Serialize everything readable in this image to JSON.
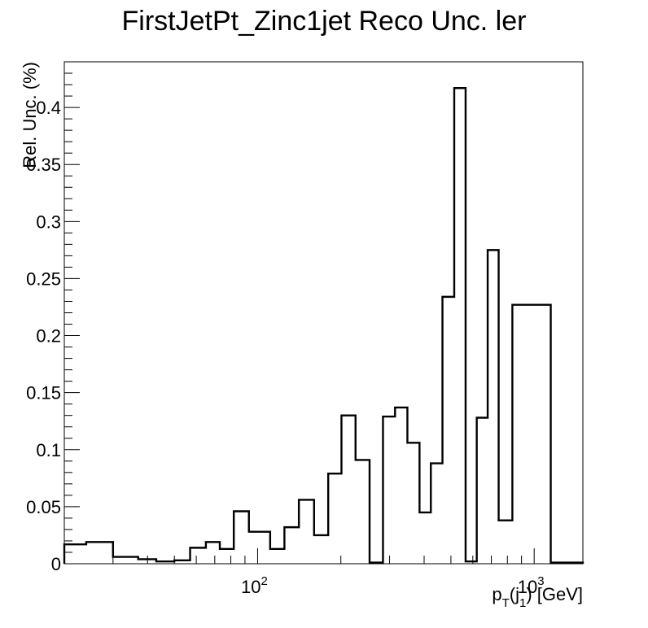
{
  "chart_data": {
    "type": "histogram",
    "title": "FirstJetPt_Zinc1jet Reco Unc. ler",
    "xlabel": {
      "base": "p",
      "sub1": "T",
      "mid": "(j",
      "sub2": "1",
      "end": ") [GeV]"
    },
    "ylabel": "Rel. Unc. (%)",
    "x_scale": "log",
    "xlim": [
      20,
      1500
    ],
    "ylim": [
      0,
      0.44
    ],
    "x_tick_labels": [
      {
        "value": 100,
        "base": "10",
        "exp": "2"
      },
      {
        "value": 1000,
        "base": "10",
        "exp": "3"
      }
    ],
    "y_ticks": [
      0,
      0.05,
      0.1,
      0.15,
      0.2,
      0.25,
      0.3,
      0.35,
      0.4
    ],
    "y_tick_labels": [
      "0",
      "0.05",
      "0.1",
      "0.15",
      "0.2",
      "0.25",
      "0.3",
      "0.35",
      "0.4"
    ],
    "bin_edges": [
      20,
      24,
      30,
      37,
      43,
      50,
      57,
      65,
      73,
      82,
      93,
      111,
      125,
      141,
      160,
      180,
      201,
      226,
      254,
      284,
      314,
      348,
      385,
      423,
      466,
      514,
      565,
      620,
      679,
      744,
      834,
      1148,
      1500
    ],
    "values": [
      0.017,
      0.019,
      0.006,
      0.004,
      0.002,
      0.003,
      0.014,
      0.019,
      0.013,
      0.046,
      0.028,
      0.013,
      0.032,
      0.056,
      0.025,
      0.079,
      0.13,
      0.091,
      0.001,
      0.129,
      0.137,
      0.106,
      0.045,
      0.088,
      0.234,
      0.417,
      0.002,
      0.128,
      0.275,
      0.038,
      0.227,
      0.001
    ],
    "legend": "none",
    "grid": false
  }
}
